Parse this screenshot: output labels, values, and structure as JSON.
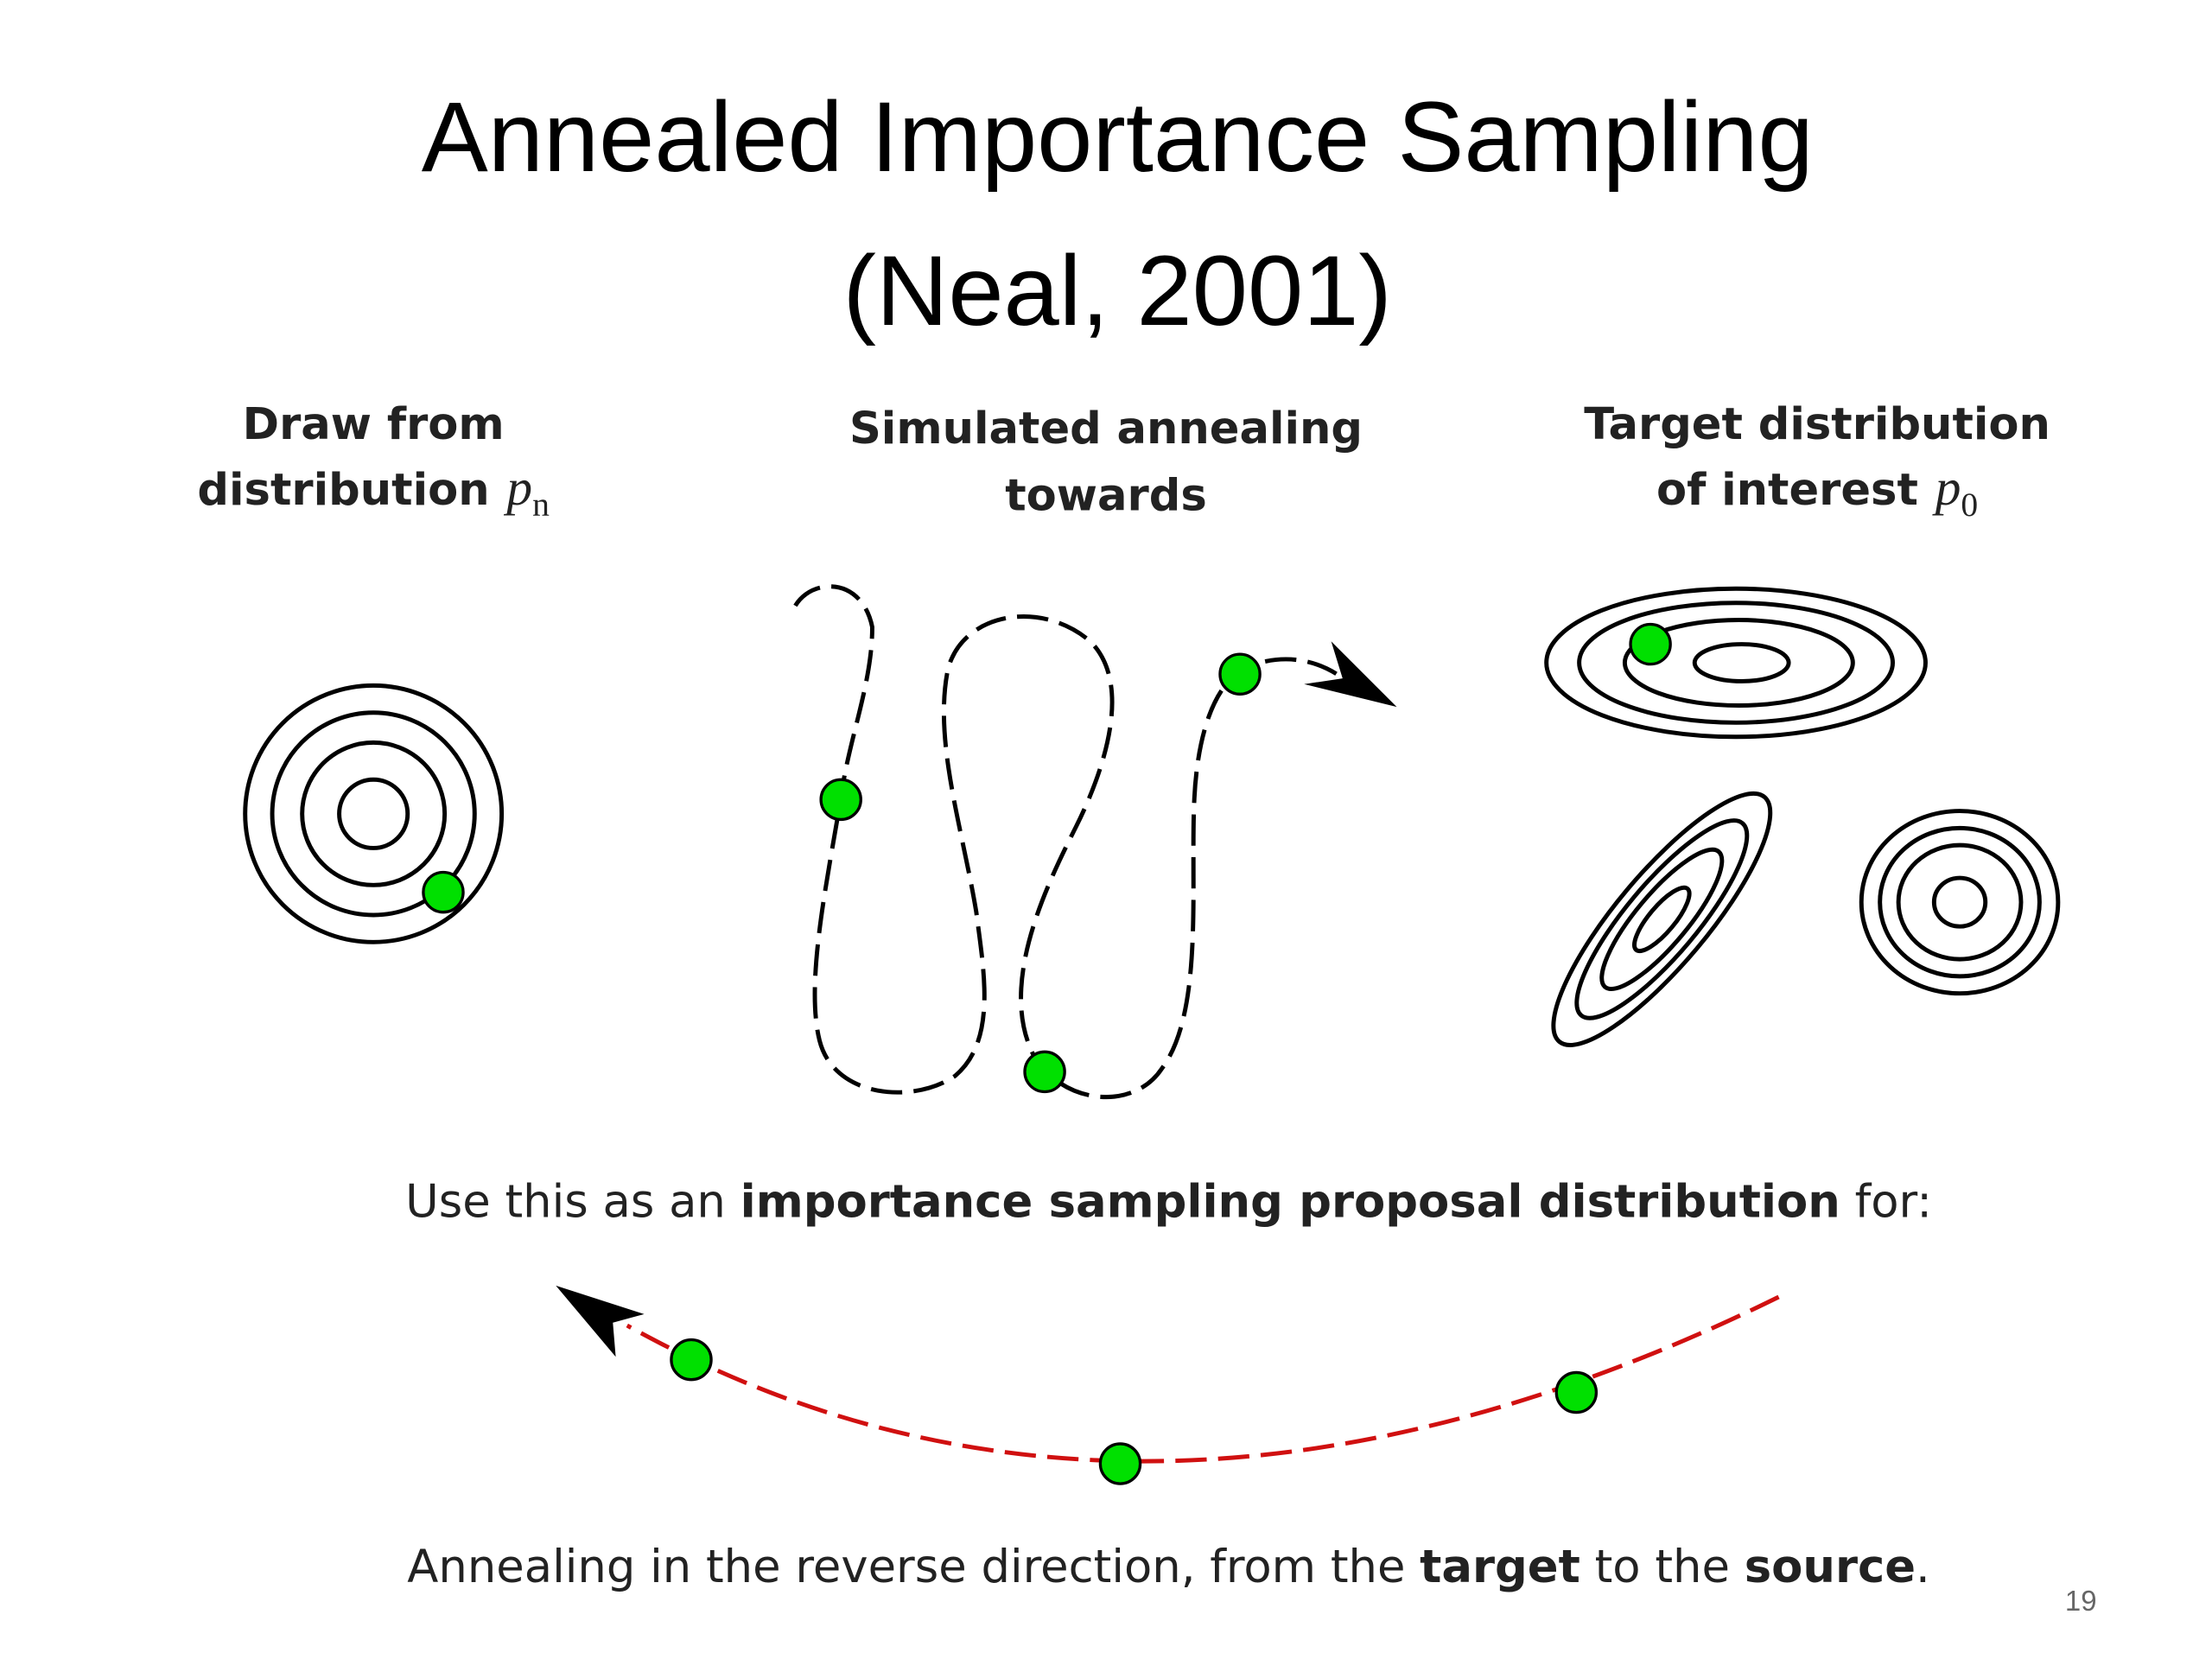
{
  "slide": {
    "title": [
      "Annealed Importance Sampling",
      "(Neal, 2001)"
    ],
    "panels": [
      {
        "heading": [
          "Draw from",
          "distribution"
        ],
        "symbol": "p",
        "subscript": "n"
      },
      {
        "heading": [
          "Simulated annealing",
          "towards"
        ]
      },
      {
        "heading": [
          "Target distribution",
          "of interest"
        ],
        "symbol": "p",
        "subscript": "0"
      }
    ],
    "caption_top": [
      {
        "text": "Use this as an ",
        "bold": false
      },
      {
        "text": "importance sampling proposal distribution",
        "bold": true
      },
      {
        "text": " for:",
        "bold": false
      }
    ],
    "caption_bottom": [
      {
        "text": "Annealing in the reverse direction, from the ",
        "bold": false
      },
      {
        "text": "target",
        "bold": true
      },
      {
        "text": " to the ",
        "bold": false
      },
      {
        "text": "source",
        "bold": true
      },
      {
        "text": ".",
        "bold": false
      }
    ],
    "page_number": "19"
  }
}
